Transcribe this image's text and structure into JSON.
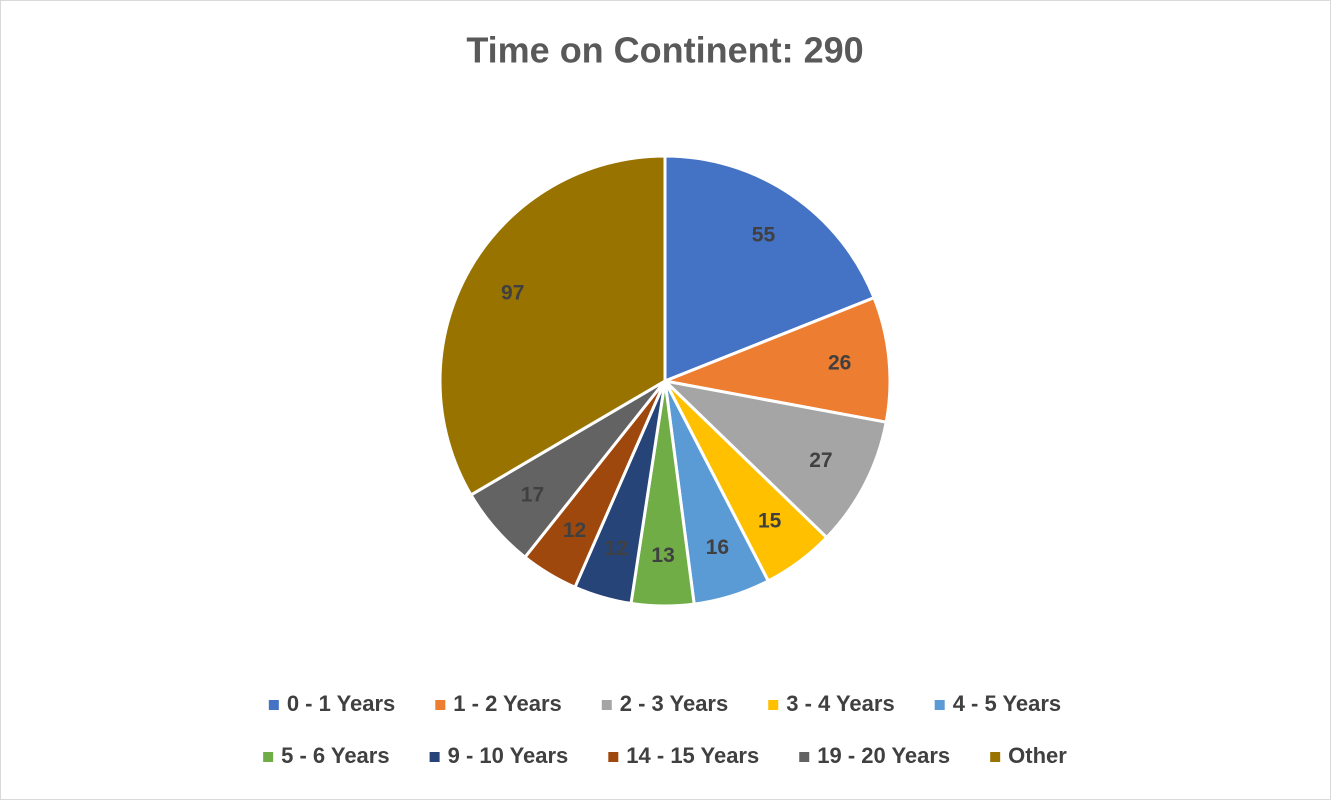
{
  "chart_data": {
    "type": "pie",
    "title": "Time on Continent: 290",
    "categories": [
      "0 - 1 Years",
      "1 - 2 Years",
      "2 - 3 Years",
      "3 - 4 Years",
      "4 - 5 Years",
      "5 - 6 Years",
      "9 - 10 Years",
      "14 - 15 Years",
      "19 - 20 Years",
      "Other"
    ],
    "values": [
      55,
      26,
      27,
      15,
      16,
      13,
      12,
      12,
      17,
      97
    ],
    "colors": [
      "#4472c4",
      "#ed7d31",
      "#a5a5a5",
      "#ffc000",
      "#5b9bd5",
      "#70ad47",
      "#264478",
      "#9e480e",
      "#636363",
      "#997300"
    ],
    "legend": "bottom"
  }
}
